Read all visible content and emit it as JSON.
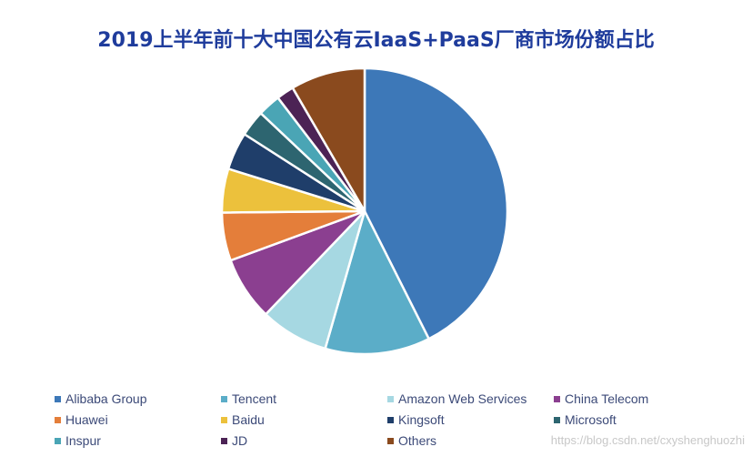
{
  "chart_data": {
    "type": "pie",
    "title": "2019上半年前十大中国公有云IaaS+PaaS厂商市场份额占比",
    "categories": [
      "Alibaba Group",
      "Tencent",
      "Amazon Web Services",
      "China Telecom",
      "Huawei",
      "Baidu",
      "Kingsoft",
      "Microsoft",
      "Inspur",
      "JD",
      "Others"
    ],
    "values": [
      43.0,
      12.0,
      7.8,
      7.3,
      5.5,
      5.0,
      4.3,
      3.0,
      2.6,
      2.0,
      8.5
    ],
    "colors": [
      "#3d78b8",
      "#5badc8",
      "#a6d8e2",
      "#8b3f90",
      "#e47e3a",
      "#ecc13c",
      "#1f3e6a",
      "#2d6570",
      "#4aa5b5",
      "#4c2355",
      "#8a4a1e"
    ],
    "legend_position": "bottom",
    "start_angle_deg": 0
  },
  "watermark": "https://blog.csdn.net/cxyshenghuozhi"
}
